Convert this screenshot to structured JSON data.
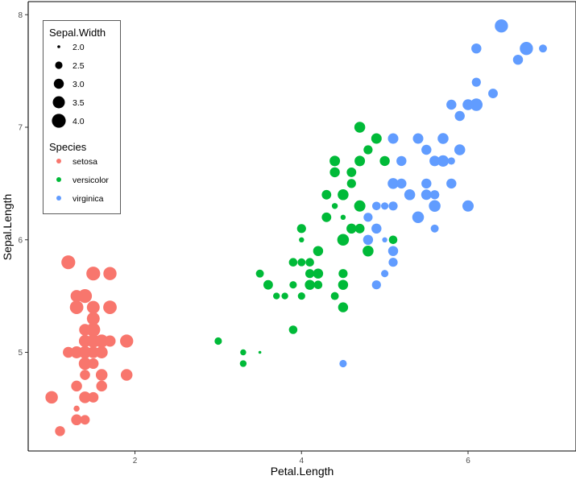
{
  "chart_data": {
    "type": "scatter",
    "title": "",
    "xlabel": "Petal.Length",
    "ylabel": "Sepal.Length",
    "xlim": [
      0.7,
      7.1
    ],
    "ylim": [
      4.1,
      8.1
    ],
    "x_ticks": [
      2,
      4,
      6
    ],
    "y_ticks": [
      5,
      6,
      7,
      8
    ],
    "grid": false,
    "legend_position": "top-left",
    "size_legend": {
      "title": "Sepal.Width",
      "values": [
        2.0,
        2.5,
        3.0,
        3.5,
        4.0
      ],
      "labels": [
        "2.0",
        "2.5",
        "3.0",
        "3.5",
        "4.0"
      ]
    },
    "color_legend": {
      "title": "Species"
    },
    "series": [
      {
        "name": "setosa",
        "color": "#F8766D",
        "points": [
          [
            1.4,
            5.1,
            3.5
          ],
          [
            1.4,
            4.9,
            3.0
          ],
          [
            1.3,
            4.7,
            3.2
          ],
          [
            1.5,
            4.6,
            3.1
          ],
          [
            1.4,
            5.0,
            3.6
          ],
          [
            1.7,
            5.4,
            3.9
          ],
          [
            1.4,
            4.6,
            3.4
          ],
          [
            1.5,
            5.0,
            3.4
          ],
          [
            1.4,
            4.4,
            2.9
          ],
          [
            1.5,
            4.9,
            3.1
          ],
          [
            1.5,
            5.4,
            3.7
          ],
          [
            1.6,
            4.8,
            3.4
          ],
          [
            1.4,
            4.8,
            3.0
          ],
          [
            1.1,
            4.3,
            3.0
          ],
          [
            1.2,
            5.8,
            4.0
          ],
          [
            1.5,
            5.7,
            4.4
          ],
          [
            1.3,
            5.4,
            3.9
          ],
          [
            1.4,
            5.1,
            3.5
          ],
          [
            1.7,
            5.7,
            3.8
          ],
          [
            1.5,
            5.1,
            3.8
          ],
          [
            1.7,
            5.4,
            3.4
          ],
          [
            1.5,
            5.1,
            3.7
          ],
          [
            1.0,
            4.6,
            3.6
          ],
          [
            1.7,
            5.1,
            3.3
          ],
          [
            1.9,
            4.8,
            3.4
          ],
          [
            1.6,
            5.0,
            3.0
          ],
          [
            1.6,
            5.0,
            3.4
          ],
          [
            1.5,
            5.2,
            3.5
          ],
          [
            1.4,
            5.2,
            3.4
          ],
          [
            1.6,
            4.7,
            3.2
          ],
          [
            1.6,
            4.8,
            3.1
          ],
          [
            1.5,
            5.4,
            3.4
          ],
          [
            1.5,
            5.2,
            4.1
          ],
          [
            1.4,
            5.5,
            4.2
          ],
          [
            1.5,
            4.9,
            3.1
          ],
          [
            1.2,
            5.0,
            3.2
          ],
          [
            1.3,
            5.5,
            3.5
          ],
          [
            1.4,
            4.9,
            3.6
          ],
          [
            1.3,
            4.4,
            3.0
          ],
          [
            1.5,
            5.1,
            3.4
          ],
          [
            1.3,
            5.0,
            3.5
          ],
          [
            1.3,
            4.5,
            2.3
          ],
          [
            1.3,
            4.4,
            3.2
          ],
          [
            1.6,
            5.0,
            3.5
          ],
          [
            1.9,
            5.1,
            3.8
          ],
          [
            1.4,
            4.8,
            3.0
          ],
          [
            1.6,
            5.1,
            3.8
          ],
          [
            1.4,
            4.6,
            3.2
          ],
          [
            1.5,
            5.3,
            3.7
          ],
          [
            1.4,
            5.0,
            3.3
          ]
        ]
      },
      {
        "name": "versicolor",
        "color": "#00BA38",
        "points": [
          [
            4.7,
            7.0,
            3.2
          ],
          [
            4.5,
            6.4,
            3.2
          ],
          [
            4.9,
            6.9,
            3.1
          ],
          [
            4.0,
            5.5,
            2.3
          ],
          [
            4.6,
            6.5,
            2.8
          ],
          [
            4.5,
            5.7,
            2.8
          ],
          [
            4.7,
            6.3,
            3.3
          ],
          [
            3.3,
            4.9,
            2.4
          ],
          [
            4.6,
            6.6,
            2.9
          ],
          [
            3.9,
            5.2,
            2.7
          ],
          [
            3.5,
            5.0,
            2.0
          ],
          [
            4.2,
            5.9,
            3.0
          ],
          [
            4.0,
            6.0,
            2.2
          ],
          [
            4.7,
            6.1,
            2.9
          ],
          [
            3.6,
            5.6,
            2.9
          ],
          [
            4.4,
            6.7,
            3.1
          ],
          [
            4.5,
            5.6,
            3.0
          ],
          [
            4.1,
            5.8,
            2.7
          ],
          [
            4.5,
            6.2,
            2.2
          ],
          [
            3.9,
            5.6,
            2.5
          ],
          [
            4.8,
            5.9,
            3.2
          ],
          [
            4.0,
            6.1,
            2.8
          ],
          [
            4.9,
            6.3,
            2.5
          ],
          [
            4.7,
            6.1,
            2.8
          ],
          [
            4.3,
            6.4,
            2.9
          ],
          [
            4.4,
            6.6,
            3.0
          ],
          [
            4.8,
            6.8,
            2.8
          ],
          [
            5.0,
            6.7,
            3.0
          ],
          [
            4.5,
            6.0,
            2.9
          ],
          [
            3.5,
            5.7,
            2.6
          ],
          [
            3.8,
            5.5,
            2.4
          ],
          [
            3.7,
            5.5,
            2.4
          ],
          [
            3.9,
            5.8,
            2.7
          ],
          [
            5.1,
            6.0,
            2.7
          ],
          [
            4.5,
            5.4,
            3.0
          ],
          [
            4.5,
            6.0,
            3.4
          ],
          [
            4.7,
            6.7,
            3.1
          ],
          [
            4.4,
            6.3,
            2.3
          ],
          [
            4.1,
            5.6,
            3.0
          ],
          [
            4.0,
            5.5,
            2.5
          ],
          [
            4.4,
            5.5,
            2.6
          ],
          [
            4.6,
            6.1,
            3.0
          ],
          [
            4.0,
            5.8,
            2.6
          ],
          [
            3.3,
            5.0,
            2.3
          ],
          [
            4.2,
            5.6,
            2.7
          ],
          [
            4.2,
            5.7,
            3.0
          ],
          [
            4.2,
            5.7,
            2.9
          ],
          [
            4.3,
            6.2,
            2.9
          ],
          [
            3.0,
            5.1,
            2.5
          ],
          [
            4.1,
            5.7,
            2.8
          ]
        ]
      },
      {
        "name": "virginica",
        "color": "#619CFF",
        "points": [
          [
            6.0,
            6.3,
            3.3
          ],
          [
            5.1,
            5.8,
            2.7
          ],
          [
            5.9,
            7.1,
            3.0
          ],
          [
            5.6,
            6.3,
            2.9
          ],
          [
            5.8,
            6.5,
            3.0
          ],
          [
            6.6,
            7.6,
            3.0
          ],
          [
            4.5,
            4.9,
            2.5
          ],
          [
            6.3,
            7.3,
            2.9
          ],
          [
            5.8,
            6.7,
            2.5
          ],
          [
            6.1,
            7.2,
            3.6
          ],
          [
            5.1,
            6.5,
            3.2
          ],
          [
            5.3,
            6.4,
            2.7
          ],
          [
            5.5,
            6.8,
            3.0
          ],
          [
            5.0,
            5.7,
            2.5
          ],
          [
            5.1,
            5.8,
            2.8
          ],
          [
            5.3,
            6.4,
            3.2
          ],
          [
            5.5,
            6.5,
            3.0
          ],
          [
            6.7,
            7.7,
            3.8
          ],
          [
            6.9,
            7.7,
            2.6
          ],
          [
            5.0,
            6.0,
            2.2
          ],
          [
            5.7,
            6.9,
            3.2
          ],
          [
            4.9,
            5.6,
            2.8
          ],
          [
            6.7,
            7.7,
            2.8
          ],
          [
            4.9,
            6.3,
            2.7
          ],
          [
            5.7,
            6.7,
            3.3
          ],
          [
            6.0,
            7.2,
            3.2
          ],
          [
            4.8,
            6.2,
            2.8
          ],
          [
            4.9,
            6.1,
            3.0
          ],
          [
            5.6,
            6.4,
            2.8
          ],
          [
            5.8,
            7.2,
            3.0
          ],
          [
            6.1,
            7.4,
            2.8
          ],
          [
            6.4,
            7.9,
            3.8
          ],
          [
            5.6,
            6.4,
            2.8
          ],
          [
            5.1,
            6.3,
            2.8
          ],
          [
            5.6,
            6.1,
            2.6
          ],
          [
            6.1,
            7.7,
            3.0
          ],
          [
            5.6,
            6.3,
            3.4
          ],
          [
            5.5,
            6.4,
            3.1
          ],
          [
            4.8,
            6.0,
            3.0
          ],
          [
            5.4,
            6.9,
            3.1
          ],
          [
            5.6,
            6.7,
            3.1
          ],
          [
            5.1,
            6.9,
            3.1
          ],
          [
            5.1,
            5.8,
            2.7
          ],
          [
            5.9,
            6.8,
            3.2
          ],
          [
            5.7,
            6.7,
            3.3
          ],
          [
            5.2,
            6.7,
            3.0
          ],
          [
            5.0,
            6.3,
            2.5
          ],
          [
            5.2,
            6.5,
            3.0
          ],
          [
            5.4,
            6.2,
            3.4
          ],
          [
            5.1,
            5.9,
            3.0
          ]
        ]
      }
    ]
  }
}
